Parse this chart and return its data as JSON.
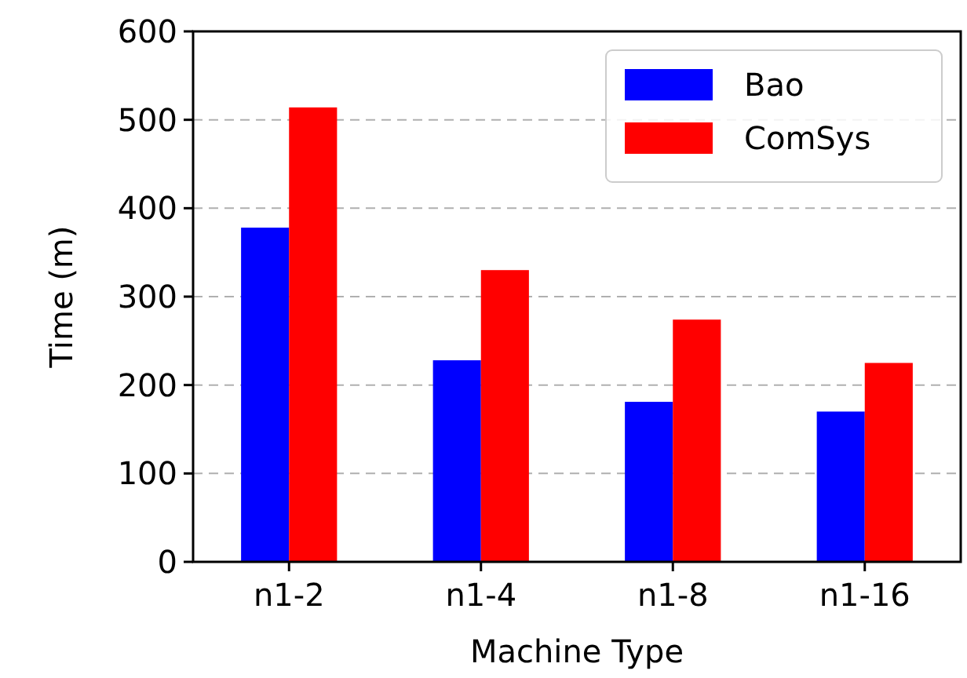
{
  "chart_data": {
    "type": "bar",
    "xlabel": "Machine Type",
    "ylabel": "Time (m)",
    "categories": [
      "n1-2",
      "n1-4",
      "n1-8",
      "n1-16"
    ],
    "series": [
      {
        "name": "Bao",
        "color": "#0000ff",
        "values": [
          378,
          228,
          181,
          170
        ]
      },
      {
        "name": "ComSys",
        "color": "#ff0000",
        "values": [
          514,
          330,
          274,
          225
        ]
      }
    ],
    "ylim": [
      0,
      600
    ],
    "yticks": [
      0,
      100,
      200,
      300,
      400,
      500,
      600
    ],
    "grid": "y",
    "legend": "top right"
  }
}
